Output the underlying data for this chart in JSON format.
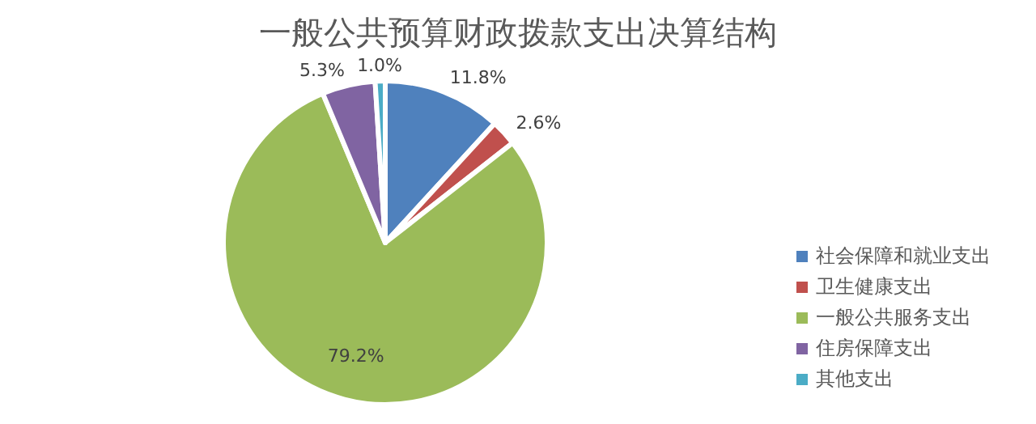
{
  "chart_data": {
    "type": "pie",
    "title": "一般公共预算财政拨款支出决算结构",
    "categories": [
      "社会保障和就业支出",
      "卫生健康支出",
      "一般公共服务支出",
      "住房保障支出",
      "其他支出"
    ],
    "values": [
      11.8,
      2.6,
      79.2,
      5.3,
      1.0
    ],
    "colors": [
      "#4f81bd",
      "#c0504d",
      "#9bbb59",
      "#8064a2",
      "#4bacc6"
    ],
    "value_labels": [
      "11.8%",
      "2.6%",
      "79.2%",
      "5.3%",
      "1.0%"
    ],
    "legend": "bottom right"
  }
}
